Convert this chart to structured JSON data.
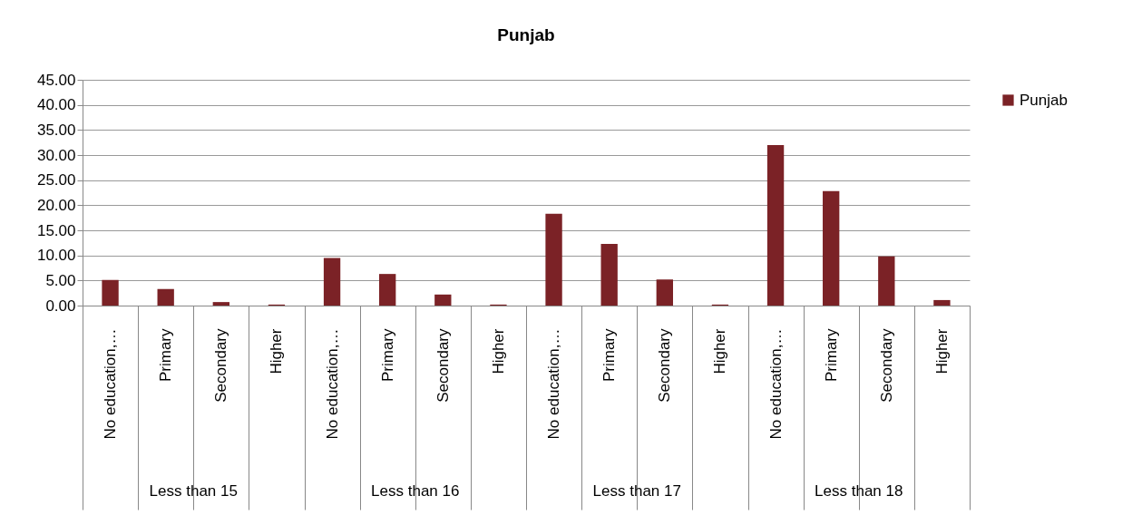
{
  "chart_data": {
    "type": "bar",
    "title": "Punjab",
    "categories": [
      "No education,…",
      "Primary",
      "Secondary",
      "Higher",
      "No education,…",
      "Primary",
      "Secondary",
      "Higher",
      "No education,…",
      "Primary",
      "Secondary",
      "Higher",
      "No education,…",
      "Primary",
      "Secondary",
      "Higher"
    ],
    "series": [
      {
        "name": "Punjab",
        "color": "#7b2226",
        "values": [
          5.1,
          3.3,
          0.7,
          0.2,
          9.5,
          6.3,
          2.2,
          0.2,
          18.3,
          12.3,
          5.2,
          0.2,
          32.0,
          22.8,
          9.8,
          1.1
        ]
      }
    ],
    "annotations": [
      "Less than 15",
      "Less than 16",
      "Less than 17",
      "Less than 18"
    ],
    "ylim": [
      0,
      45
    ],
    "yticks": [
      {
        "value": 0,
        "label": "0.00"
      },
      {
        "value": 5,
        "label": "5.00"
      },
      {
        "value": 10,
        "label": "10.00"
      },
      {
        "value": 15,
        "label": "15.00"
      },
      {
        "value": 20,
        "label": "20.00"
      },
      {
        "value": 25,
        "label": "25.00"
      },
      {
        "value": 30,
        "label": "30.00"
      },
      {
        "value": 35,
        "label": "35.00"
      },
      {
        "value": 40,
        "label": "40.00"
      },
      {
        "value": 45,
        "label": "45.00"
      }
    ],
    "grid": "y",
    "legend": "right"
  }
}
